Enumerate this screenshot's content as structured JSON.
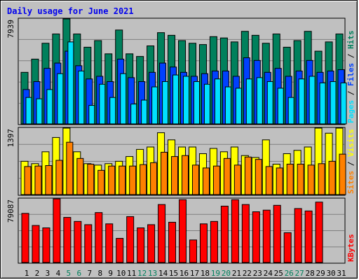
{
  "title": "Daily usage for June 2021",
  "colors": {
    "hits": "#00805c",
    "files": "#0040ff",
    "pages": "#00e0ff",
    "visits": "#ffff00",
    "sites": "#ff8000",
    "kbytes": "#ff0000",
    "grid": "#808080",
    "highlight_day": "#00805c",
    "normal_day": "#000000"
  },
  "chart_data": [
    {
      "type": "bar",
      "name": "hits-files-pages",
      "max_label": "7939",
      "ylim": [
        0,
        7939
      ],
      "series": [
        {
          "name": "Hits",
          "legend_color": "#00805c",
          "values": [
            3900,
            4900,
            6100,
            6800,
            8100,
            6800,
            5800,
            6300,
            5300,
            7100,
            5300,
            5100,
            5900,
            6900,
            6700,
            6300,
            6100,
            6000,
            6600,
            6500,
            6200,
            7000,
            6700,
            6100,
            6800,
            5800,
            6300,
            7000,
            5500,
            6200,
            6800
          ]
        },
        {
          "name": "Files",
          "legend_color": "#0040ff",
          "values": [
            2600,
            3200,
            4200,
            4600,
            5500,
            4400,
            3400,
            3600,
            3200,
            4900,
            3500,
            3200,
            3900,
            4600,
            4300,
            3900,
            3600,
            3800,
            4000,
            4000,
            3600,
            5000,
            4800,
            3900,
            4200,
            3600,
            4000,
            4800,
            3900,
            4000,
            4100
          ]
        },
        {
          "name": "Pages",
          "legend_color": "#00e0ff",
          "values": [
            2000,
            1900,
            2600,
            3800,
            6200,
            4000,
            1400,
            3000,
            2000,
            3800,
            1500,
            1800,
            2800,
            3200,
            3700,
            3600,
            3200,
            3000,
            3400,
            2800,
            2700,
            3400,
            3500,
            3200,
            2700,
            2000,
            3400,
            3600,
            3100,
            3200,
            3100
          ]
        }
      ],
      "axis_label_parts": [
        "Pages",
        "Files",
        "Hits"
      ]
    },
    {
      "type": "bar",
      "name": "visits-sites",
      "max_label": "1397",
      "ylim": [
        0,
        1397
      ],
      "series": [
        {
          "name": "Visits",
          "legend_color": "#ffff00",
          "values": [
            700,
            650,
            900,
            1200,
            1400,
            900,
            650,
            620,
            650,
            700,
            800,
            950,
            1000,
            1300,
            1150,
            1000,
            1000,
            860,
            970,
            900,
            1000,
            820,
            780,
            1150,
            640,
            860,
            930,
            1000,
            1400,
            1290,
            1400
          ]
        },
        {
          "name": "Sites",
          "legend_color": "#ff8000",
          "values": [
            590,
            600,
            610,
            720,
            1100,
            760,
            640,
            510,
            600,
            600,
            600,
            630,
            670,
            890,
            800,
            820,
            620,
            560,
            600,
            760,
            620,
            790,
            740,
            590,
            560,
            640,
            640,
            620,
            650,
            700,
            850
          ]
        }
      ],
      "axis_label_parts": [
        "Sites",
        "Visits"
      ]
    },
    {
      "type": "bar",
      "name": "kbytes",
      "max_label": "79087",
      "ylim": [
        0,
        79087
      ],
      "series": [
        {
          "name": "KBytes",
          "legend_color": "#ff0000",
          "values": [
            61000,
            46000,
            43000,
            79000,
            56000,
            51000,
            47000,
            62000,
            48000,
            30000,
            57000,
            43000,
            47000,
            72000,
            50000,
            78000,
            28000,
            48000,
            51000,
            70000,
            78000,
            72000,
            63000,
            65000,
            71000,
            37000,
            67000,
            64000,
            75000,
            0,
            0
          ]
        }
      ],
      "axis_label_parts": [
        "KBytes"
      ]
    }
  ],
  "x_categories": [
    "1",
    "2",
    "3",
    "4",
    "5",
    "6",
    "7",
    "8",
    "9",
    "10",
    "11",
    "12",
    "13",
    "14",
    "15",
    "16",
    "17",
    "18",
    "19",
    "20",
    "21",
    "22",
    "23",
    "24",
    "25",
    "26",
    "27",
    "28",
    "29",
    "30",
    "31"
  ],
  "highlighted_days": [
    "5",
    "6",
    "12",
    "13",
    "19",
    "20",
    "26",
    "27"
  ]
}
